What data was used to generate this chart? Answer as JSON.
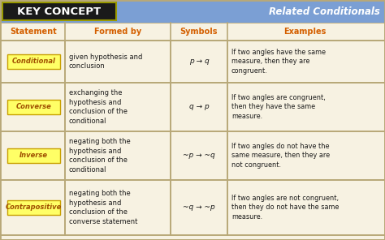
{
  "title_left": "KEY CONCEPT",
  "title_right": "Related Conditionals",
  "header_bg": "#7b9fd4",
  "key_concept_bg": "#1a1a1a",
  "table_bg": "#f7f2e2",
  "col_header_color": "#d45f00",
  "row_label_text_color": "#a05000",
  "text_color": "#1a1a1a",
  "border_color": "#b8a878",
  "col_headers": [
    "Statement",
    "Formed by",
    "Symbols",
    "Examples"
  ],
  "rows": [
    {
      "label": "Conditional",
      "formed_by": "given hypothesis and\nconclusion",
      "symbols": "p → q",
      "examples": "If two angles have the same\nmeasure, then they are\ncongruent."
    },
    {
      "label": "Converse",
      "formed_by": "exchanging the\nhypothesis and\nconclusion of the\nconditional",
      "symbols": "q → p",
      "examples": "If two angles are congruent,\nthen they have the same\nmeasure."
    },
    {
      "label": "Inverse",
      "formed_by": "negating both the\nhypothesis and\nconclusion of the\nconditional",
      "symbols": "~p → ~q",
      "examples": "If two angles do not have the\nsame measure, then they are\nnot congruent."
    },
    {
      "label": "Contrapositive",
      "formed_by": "negating both the\nhypothesis and\nconclusion of the\nconverse statement",
      "symbols": "~q → ~p",
      "examples": "If two angles are not congruent,\nthen they do not have the same\nmeasure."
    }
  ],
  "fig_width": 4.74,
  "fig_height": 2.96,
  "dpi": 100
}
